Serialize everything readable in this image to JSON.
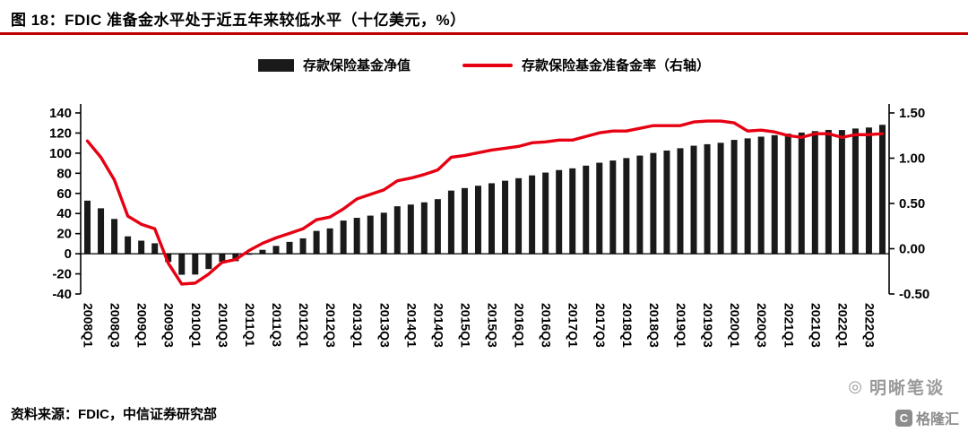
{
  "header": {
    "title": "图 18：FDIC 准备金水平处于近五年来较低水平（十亿美元，%）",
    "rule_color": "#c00000"
  },
  "legend": [
    {
      "label": "存款保险基金净值",
      "type": "bar",
      "color": "#1a1a1a"
    },
    {
      "label": "存款保险基金准备金率（右轴）",
      "type": "line",
      "color": "#e60012"
    }
  ],
  "chart_data": {
    "type": "bar",
    "subtype": "bar+line combo",
    "categories": [
      "2008Q1",
      "2008Q2",
      "2008Q3",
      "2008Q4",
      "2009Q1",
      "2009Q2",
      "2009Q3",
      "2009Q4",
      "2010Q1",
      "2010Q2",
      "2010Q3",
      "2010Q4",
      "2011Q1",
      "2011Q2",
      "2011Q3",
      "2011Q4",
      "2012Q1",
      "2012Q2",
      "2012Q3",
      "2012Q4",
      "2013Q1",
      "2013Q2",
      "2013Q3",
      "2013Q4",
      "2014Q1",
      "2014Q2",
      "2014Q3",
      "2014Q4",
      "2015Q1",
      "2015Q2",
      "2015Q3",
      "2015Q4",
      "2016Q1",
      "2016Q2",
      "2016Q3",
      "2016Q4",
      "2017Q1",
      "2017Q2",
      "2017Q3",
      "2017Q4",
      "2018Q1",
      "2018Q2",
      "2018Q3",
      "2018Q4",
      "2019Q1",
      "2019Q2",
      "2019Q3",
      "2019Q4",
      "2020Q1",
      "2020Q2",
      "2020Q3",
      "2020Q4",
      "2021Q1",
      "2021Q2",
      "2021Q3",
      "2021Q4",
      "2022Q1",
      "2022Q2",
      "2022Q3",
      "2022Q4"
    ],
    "series": [
      {
        "name": "存款保险基金净值",
        "type": "bar",
        "axis": "left",
        "color": "#1a1a1a",
        "values": [
          52.8,
          45.2,
          34.6,
          17.3,
          13.0,
          10.4,
          -8.2,
          -20.9,
          -20.7,
          -15.2,
          -8.0,
          -7.4,
          -1.0,
          3.9,
          7.8,
          11.8,
          15.3,
          22.7,
          25.2,
          33.0,
          35.7,
          37.9,
          40.8,
          47.2,
          48.9,
          51.1,
          54.3,
          62.8,
          65.3,
          67.6,
          70.1,
          72.6,
          75.1,
          77.9,
          80.7,
          83.2,
          84.9,
          87.6,
          90.5,
          92.7,
          95.1,
          97.6,
          100.2,
          102.6,
          104.9,
          107.4,
          108.9,
          110.3,
          113.2,
          114.7,
          116.4,
          117.9,
          119.4,
          120.5,
          121.9,
          123.1,
          123.0,
          124.5,
          125.5,
          128.2
        ]
      },
      {
        "name": "存款保险基金准备金率（右轴）",
        "type": "line",
        "axis": "right",
        "color": "#e60012",
        "values": [
          1.19,
          1.01,
          0.76,
          0.36,
          0.27,
          0.22,
          -0.16,
          -0.39,
          -0.38,
          -0.28,
          -0.15,
          -0.12,
          -0.02,
          0.06,
          0.12,
          0.17,
          0.22,
          0.32,
          0.35,
          0.44,
          0.55,
          0.6,
          0.65,
          0.75,
          0.78,
          0.82,
          0.87,
          1.01,
          1.03,
          1.06,
          1.09,
          1.11,
          1.13,
          1.17,
          1.18,
          1.2,
          1.2,
          1.24,
          1.28,
          1.3,
          1.3,
          1.33,
          1.36,
          1.36,
          1.36,
          1.4,
          1.41,
          1.41,
          1.39,
          1.3,
          1.31,
          1.29,
          1.25,
          1.23,
          1.27,
          1.27,
          1.23,
          1.26,
          1.26,
          1.27
        ]
      }
    ],
    "title": "FDIC 准备金水平处于近五年来较低水平（十亿美元，%）",
    "xlabel": "",
    "ylabel": "",
    "left_axis": {
      "min": -40,
      "max": 140,
      "ticks": [
        "140",
        "120",
        "100",
        "80",
        "60",
        "40",
        "20",
        "0",
        "-20",
        "-40"
      ]
    },
    "right_axis": {
      "min": -0.5,
      "max": 1.5,
      "ticks": [
        "1.50",
        "1.00",
        "0.50",
        "0.00",
        "-0.50"
      ]
    },
    "x_tick_every": 2,
    "grid": false,
    "legend_position": "top-center"
  },
  "footer": {
    "source": "资料来源：FDIC，中信证券研究部"
  },
  "watermark": {
    "icon": "◎",
    "text": "明晰笔谈"
  },
  "logo": {
    "icon": "C",
    "text": "格隆汇"
  }
}
